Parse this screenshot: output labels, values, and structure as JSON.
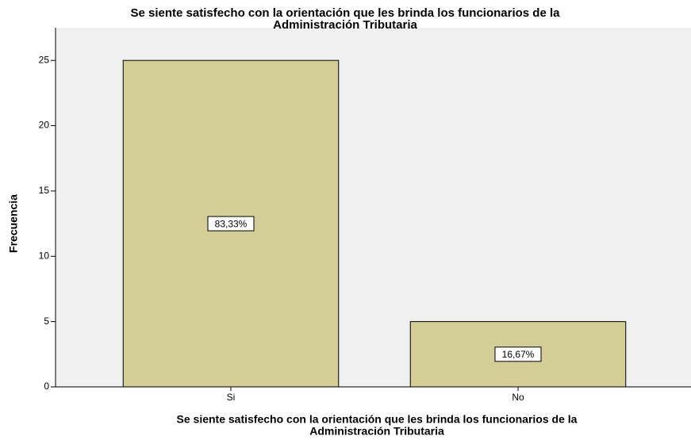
{
  "chart_data": {
    "type": "bar",
    "title": [
      "Se siente satisfecho con la orientación que les brinda los funcionarios de la",
      "Administración Tributaria"
    ],
    "x_label": [
      "Se siente satisfecho con la orientación que les brinda los funcionarios de la",
      "Administración Tributaria"
    ],
    "y_label": "Frecuencia",
    "categories": [
      "Si",
      "No"
    ],
    "values": [
      25,
      5
    ],
    "percent_labels": [
      "83,33%",
      "16,67%"
    ],
    "color": "#d3cd96",
    "ylim": [
      0,
      27.5
    ],
    "yticks": [
      0,
      5,
      10,
      15,
      20,
      25
    ]
  }
}
